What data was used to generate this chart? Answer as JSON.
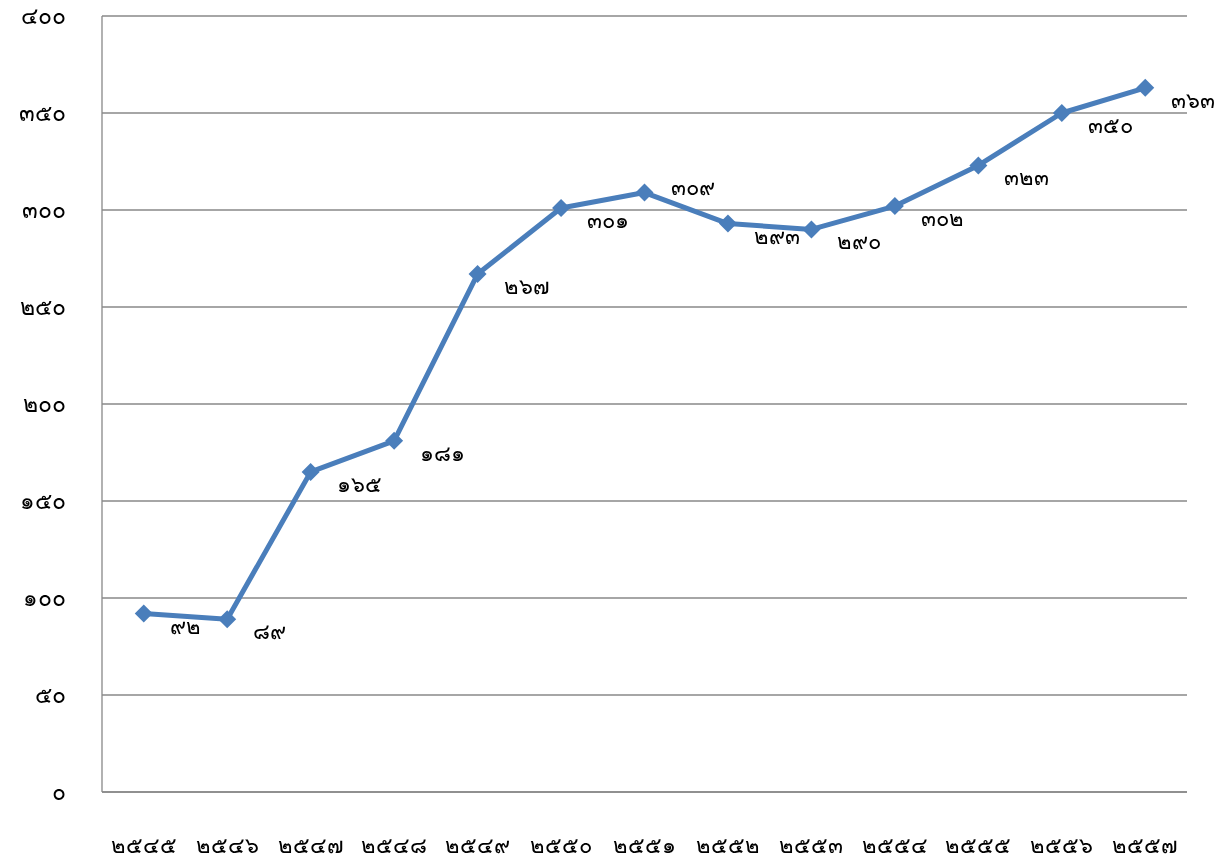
{
  "chart_data": {
    "type": "line",
    "categories": [
      "๒๕๔๕",
      "๒๕๔๖",
      "๒๕๔๗",
      "๒๕๔๘",
      "๒๕๔๙",
      "๒๕๕๐",
      "๒๕๕๑",
      "๒๕๕๒",
      "๒๕๕๓",
      "๒๕๕๔",
      "๒๕๕๕",
      "๒๕๕๖",
      "๒๕๕๗"
    ],
    "series": [
      {
        "color": "#4a7ebb",
        "values": [
          92,
          89,
          165,
          181,
          267,
          301,
          309,
          293,
          290,
          302,
          323,
          350,
          363
        ],
        "value_labels": [
          "๙๒",
          "๘๙",
          "๑๖๕",
          "๑๘๑",
          "๒๖๗",
          "๓๐๑",
          "๓๐๙",
          "๒๙๓",
          "๒๙๐",
          "๓๐๒",
          "๓๒๓",
          "๓๕๐",
          "๓๖๓"
        ]
      }
    ],
    "ylim": [
      0,
      400
    ],
    "yticks": [
      {
        "value": 0,
        "label": "๐"
      },
      {
        "value": 50,
        "label": "๕๐"
      },
      {
        "value": 100,
        "label": "๑๐๐"
      },
      {
        "value": 150,
        "label": "๑๕๐"
      },
      {
        "value": 200,
        "label": "๒๐๐"
      },
      {
        "value": 250,
        "label": "๒๕๐"
      },
      {
        "value": 300,
        "label": "๓๐๐"
      },
      {
        "value": 350,
        "label": "๓๕๐"
      },
      {
        "value": 400,
        "label": "๔๐๐"
      }
    ],
    "grid": "y",
    "marker": "diamond",
    "line_style": "solid"
  }
}
